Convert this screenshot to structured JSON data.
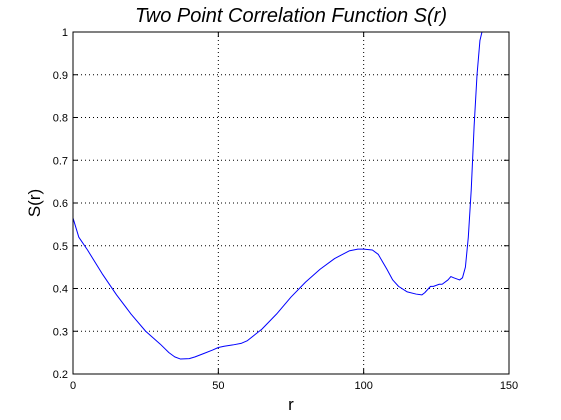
{
  "chart_data": {
    "type": "line",
    "title": "Two Point Correlation Function S(r)",
    "xlabel": "r",
    "ylabel": "S(r)",
    "xlim": [
      0,
      150
    ],
    "ylim": [
      0.2,
      1
    ],
    "xticks": [
      0,
      50,
      100,
      150
    ],
    "yticks": [
      0.2,
      0.3,
      0.4,
      0.5,
      0.6,
      0.7,
      0.8,
      0.9,
      1
    ],
    "grid": true,
    "grid_style": "dotted",
    "line_color": "#0000ff",
    "series": [
      {
        "x": [
          0,
          2,
          5,
          10,
          15,
          20,
          25,
          30,
          33,
          35,
          37,
          40,
          42,
          45,
          48,
          50,
          52,
          55,
          58,
          60,
          65,
          70,
          75,
          80,
          85,
          90,
          95,
          98,
          100,
          103,
          105,
          108,
          110,
          112,
          115,
          118,
          120,
          121,
          123,
          124,
          126,
          127,
          129,
          130,
          131,
          133,
          134,
          135,
          136,
          137,
          138,
          139,
          140,
          140.7,
          141
        ],
        "y": [
          0.565,
          0.52,
          0.49,
          0.435,
          0.385,
          0.34,
          0.3,
          0.27,
          0.25,
          0.24,
          0.235,
          0.236,
          0.24,
          0.248,
          0.256,
          0.262,
          0.265,
          0.268,
          0.272,
          0.278,
          0.305,
          0.34,
          0.38,
          0.415,
          0.445,
          0.47,
          0.488,
          0.492,
          0.492,
          0.49,
          0.48,
          0.445,
          0.42,
          0.405,
          0.392,
          0.387,
          0.385,
          0.39,
          0.405,
          0.405,
          0.41,
          0.41,
          0.42,
          0.428,
          0.425,
          0.42,
          0.425,
          0.45,
          0.52,
          0.63,
          0.78,
          0.9,
          0.98,
          1.0,
          1.0
        ]
      }
    ]
  }
}
